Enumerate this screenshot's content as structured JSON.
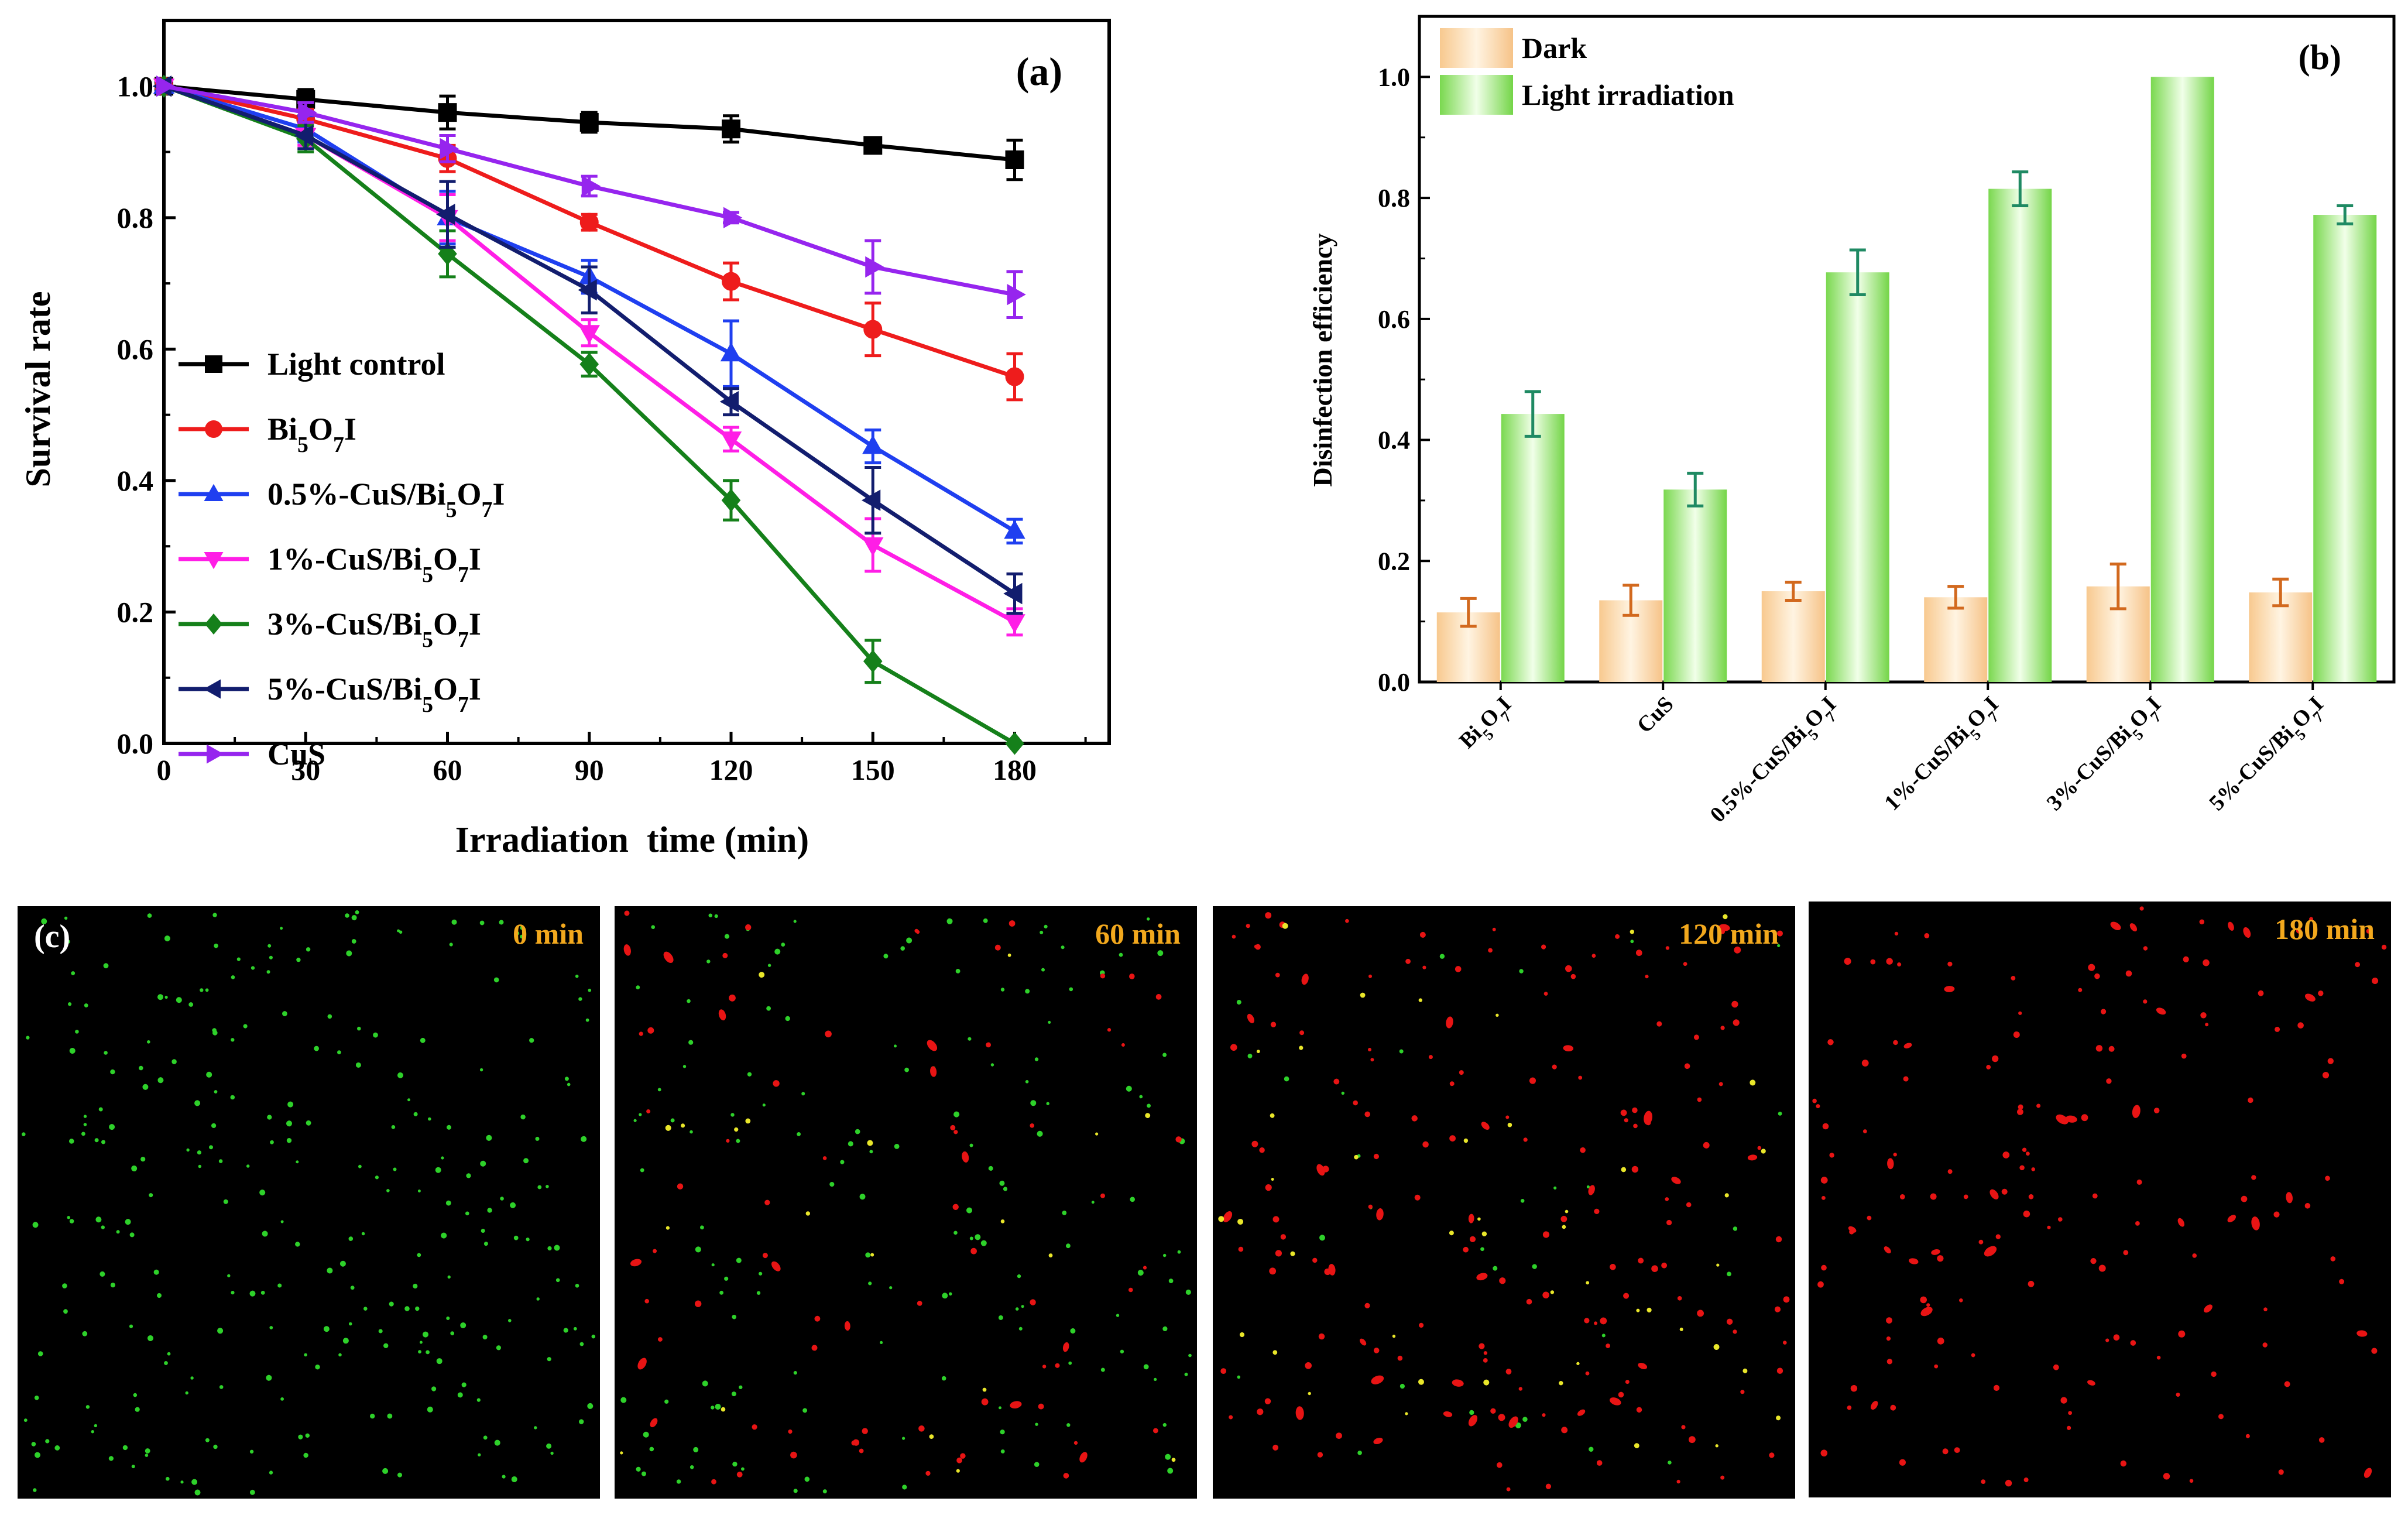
{
  "chart_data": [
    {
      "panel": "(a)",
      "type": "line",
      "xlabel": "Irradiation  time (min)",
      "ylabel": "Survival rate",
      "xlim": [
        0,
        200
      ],
      "ylim": [
        0,
        1.1
      ],
      "xticks": [
        0,
        30,
        60,
        90,
        120,
        150,
        180
      ],
      "yticks": [
        "0.0",
        "0.2",
        "0.4",
        "0.6",
        "0.8",
        "1.0"
      ],
      "legend_position": "bottom-left",
      "x": [
        0,
        30,
        60,
        90,
        120,
        150,
        180
      ],
      "series": [
        {
          "name": "Light control",
          "label_html": "Light control",
          "color": "#000000",
          "marker": "square",
          "values": [
            1.0,
            0.98,
            0.96,
            0.945,
            0.935,
            0.91,
            0.888
          ],
          "errors": [
            0,
            0.015,
            0.025,
            0.015,
            0.02,
            0.01,
            0.03
          ]
        },
        {
          "name": "Bi5O7I",
          "label_html": "Bi<tspan baseline-shift='sub' font-size='70%'>5</tspan>O<tspan baseline-shift='sub' font-size='70%'>7</tspan>I",
          "color": "#ee1c1c",
          "marker": "circle",
          "values": [
            1.0,
            0.95,
            0.89,
            0.793,
            0.703,
            0.63,
            0.558
          ],
          "errors": [
            0,
            0.015,
            0.02,
            0.012,
            0.028,
            0.04,
            0.035
          ]
        },
        {
          "name": "0.5%-CuS/Bi5O7I",
          "label_html": "0.5%-CuS/Bi<tspan baseline-shift='sub' font-size='70%'>5</tspan>O<tspan baseline-shift='sub' font-size='70%'>7</tspan>I",
          "color": "#1f3ff0",
          "marker": "triangle-up",
          "values": [
            1.0,
            0.935,
            0.8,
            0.71,
            0.593,
            0.452,
            0.323
          ],
          "errors": [
            0,
            0.02,
            0.04,
            0.025,
            0.05,
            0.025,
            0.018
          ]
        },
        {
          "name": "1%-CuS/Bi5O7I",
          "label_html": "1%-CuS/Bi<tspan baseline-shift='sub' font-size='70%'>5</tspan>O<tspan baseline-shift='sub' font-size='70%'>7</tspan>I",
          "color": "#ff1ee6",
          "marker": "triangle-down",
          "values": [
            1.0,
            0.925,
            0.8,
            0.625,
            0.463,
            0.302,
            0.185
          ],
          "errors": [
            0,
            0.015,
            0.035,
            0.02,
            0.018,
            0.04,
            0.02
          ]
        },
        {
          "name": "3%-CuS/Bi5O7I",
          "label_html": "3%-CuS/Bi<tspan baseline-shift='sub' font-size='70%'>5</tspan>O<tspan baseline-shift='sub' font-size='70%'>7</tspan>I",
          "color": "#15801a",
          "marker": "diamond",
          "values": [
            1.0,
            0.92,
            0.745,
            0.577,
            0.37,
            0.125,
            0.0
          ],
          "errors": [
            0,
            0.02,
            0.035,
            0.018,
            0.03,
            0.032,
            0.0
          ]
        },
        {
          "name": "5%-CuS/Bi5O7I",
          "label_html": "5%-CuS/Bi<tspan baseline-shift='sub' font-size='70%'>5</tspan>O<tspan baseline-shift='sub' font-size='70%'>7</tspan>I",
          "color": "#121d6e",
          "marker": "triangle-left",
          "values": [
            1.0,
            0.925,
            0.805,
            0.69,
            0.52,
            0.37,
            0.228
          ],
          "errors": [
            0,
            0.02,
            0.05,
            0.035,
            0.02,
            0.05,
            0.03
          ]
        },
        {
          "name": "CuS",
          "label_html": "CuS",
          "color": "#9625ee",
          "marker": "triangle-right",
          "values": [
            1.0,
            0.96,
            0.905,
            0.848,
            0.8,
            0.725,
            0.683
          ],
          "errors": [
            0,
            0.015,
            0.02,
            0.015,
            0.008,
            0.04,
            0.035
          ]
        }
      ]
    },
    {
      "panel": "(b)",
      "type": "bar",
      "ylabel": "Disinfection efficiency",
      "ylim": [
        0,
        1.1
      ],
      "yticks": [
        "0.0",
        "0.2",
        "0.4",
        "0.6",
        "0.8",
        "1.0"
      ],
      "legend_position": "top-left",
      "categories": [
        {
          "name": "Bi5O7I",
          "label_html": "Bi<tspan baseline-shift='sub' font-size='70%'>5</tspan>O<tspan baseline-shift='sub' font-size='70%'>7</tspan>I"
        },
        {
          "name": "CuS",
          "label_html": "CuS"
        },
        {
          "name": "0.5%-CuS/Bi5O7I",
          "label_html": "0.5%-CuS/Bi<tspan baseline-shift='sub' font-size='70%'>5</tspan>O<tspan baseline-shift='sub' font-size='70%'>7</tspan>I"
        },
        {
          "name": "1%-CuS/Bi5O7I",
          "label_html": "1%-CuS/Bi<tspan baseline-shift='sub' font-size='70%'>5</tspan>O<tspan baseline-shift='sub' font-size='70%'>7</tspan>I"
        },
        {
          "name": "3%-CuS/Bi5O7I",
          "label_html": "3%-CuS/Bi<tspan baseline-shift='sub' font-size='70%'>5</tspan>O<tspan baseline-shift='sub' font-size='70%'>7</tspan>I"
        },
        {
          "name": "5%-CuS/Bi5O7I",
          "label_html": "5%-CuS/Bi<tspan baseline-shift='sub' font-size='70%'>5</tspan>O<tspan baseline-shift='sub' font-size='70%'>7</tspan>I"
        }
      ],
      "series": [
        {
          "name": "Dark",
          "color": "#f9d7a6",
          "error_color": "#d2691e",
          "values": [
            0.115,
            0.135,
            0.15,
            0.14,
            0.158,
            0.148
          ],
          "errors": [
            0.023,
            0.025,
            0.015,
            0.018,
            0.037,
            0.022
          ]
        },
        {
          "name": "Light irradiation",
          "color": "#9be277",
          "error_color": "#1f8a63",
          "values": [
            0.443,
            0.318,
            0.677,
            0.815,
            1.0,
            0.772
          ],
          "errors": [
            0.037,
            0.027,
            0.037,
            0.028,
            0.0,
            0.015
          ]
        }
      ]
    }
  ],
  "panel_c": {
    "label": "(c)",
    "images": [
      {
        "time_label": "0 min",
        "dots": {
          "green": 260,
          "red": 0,
          "yellow": 0
        }
      },
      {
        "time_label": "60 min",
        "dots": {
          "green": 150,
          "red": 75,
          "yellow": 20
        }
      },
      {
        "time_label": "120 min",
        "dots": {
          "green": 30,
          "red": 170,
          "yellow": 45
        }
      },
      {
        "time_label": "180 min",
        "dots": {
          "green": 0,
          "red": 165,
          "yellow": 0
        }
      }
    ]
  }
}
